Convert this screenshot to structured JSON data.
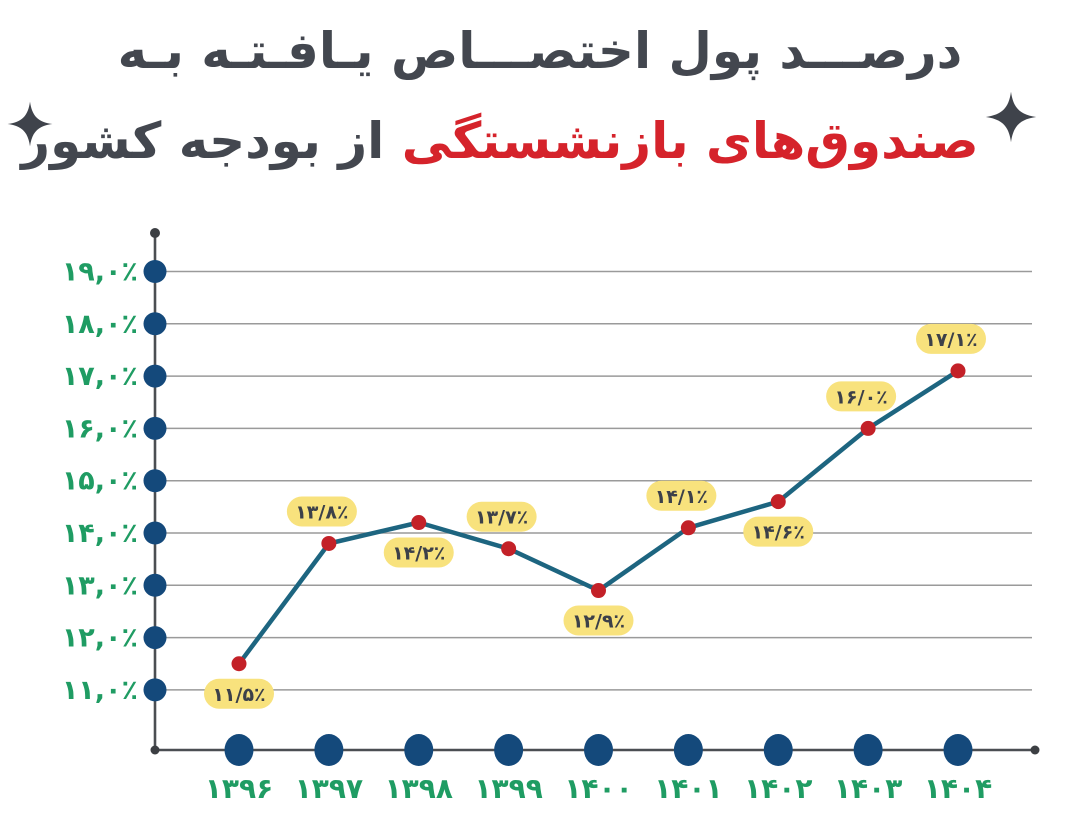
{
  "title": {
    "line1": "درصـــد پول اختصـــاص یـافـتـه بـه",
    "line2_highlight": "صندوق‌های بازنشستگی",
    "line2_rest": "از بودجه کشور"
  },
  "colors": {
    "background": "#ffffff",
    "title_dark": "#43474f",
    "title_red": "#d5232b",
    "sparkle": "#3f434b",
    "axis": "#4b4e52",
    "axis_end_dot": "#3c3f43",
    "grid": "#9a9a9a",
    "tick_dot_navy": "#14497b",
    "line_teal": "#1d6580",
    "point_red": "#c32128",
    "pill_yellow": "#f8e27d",
    "pill_text": "#3c4049",
    "tick_label_green": "#1f9c63"
  },
  "chart_data": {
    "type": "line",
    "title": "درصد پول اختصاص یافته به صندوق‌های بازنشستگی از بودجه کشور",
    "x": [
      1396,
      1397,
      1398,
      1399,
      1400,
      1401,
      1402,
      1403,
      1404
    ],
    "x_labels": [
      "۱۳۹۶",
      "۱۳۹۷",
      "۱۳۹۸",
      "۱۳۹۹",
      "۱۴۰۰",
      "۱۴۰۱",
      "۱۴۰۲",
      "۱۴۰۳",
      "۱۴۰۴"
    ],
    "values": [
      11.5,
      13.8,
      14.2,
      13.7,
      12.9,
      14.1,
      14.6,
      16.0,
      17.1
    ],
    "point_labels": [
      "۱۱/۵٪",
      "۱۳/۸٪",
      "۱۴/۲٪",
      "۱۳/۷٪",
      "۱۲/۹٪",
      "۱۴/۱٪",
      "۱۴/۶٪",
      "۱۶/۰٪",
      "۱۷/۱٪"
    ],
    "point_label_position": [
      "below",
      "above",
      "below",
      "above",
      "below",
      "above",
      "below",
      "above",
      "above"
    ],
    "y_ticks": [
      19,
      18,
      17,
      16,
      15,
      14,
      13,
      12,
      11
    ],
    "y_tick_labels": [
      "۱۹,۰٪",
      "۱۸,۰٪",
      "۱۷,۰٪",
      "۱۶,۰٪",
      "۱۵,۰٪",
      "۱۴,۰٪",
      "۱۳,۰٪",
      "۱۲,۰٪",
      "۱۱,۰٪"
    ],
    "ylim": [
      10,
      19.7
    ],
    "xlabel": "",
    "ylabel": "",
    "grid": true,
    "legend": false
  }
}
